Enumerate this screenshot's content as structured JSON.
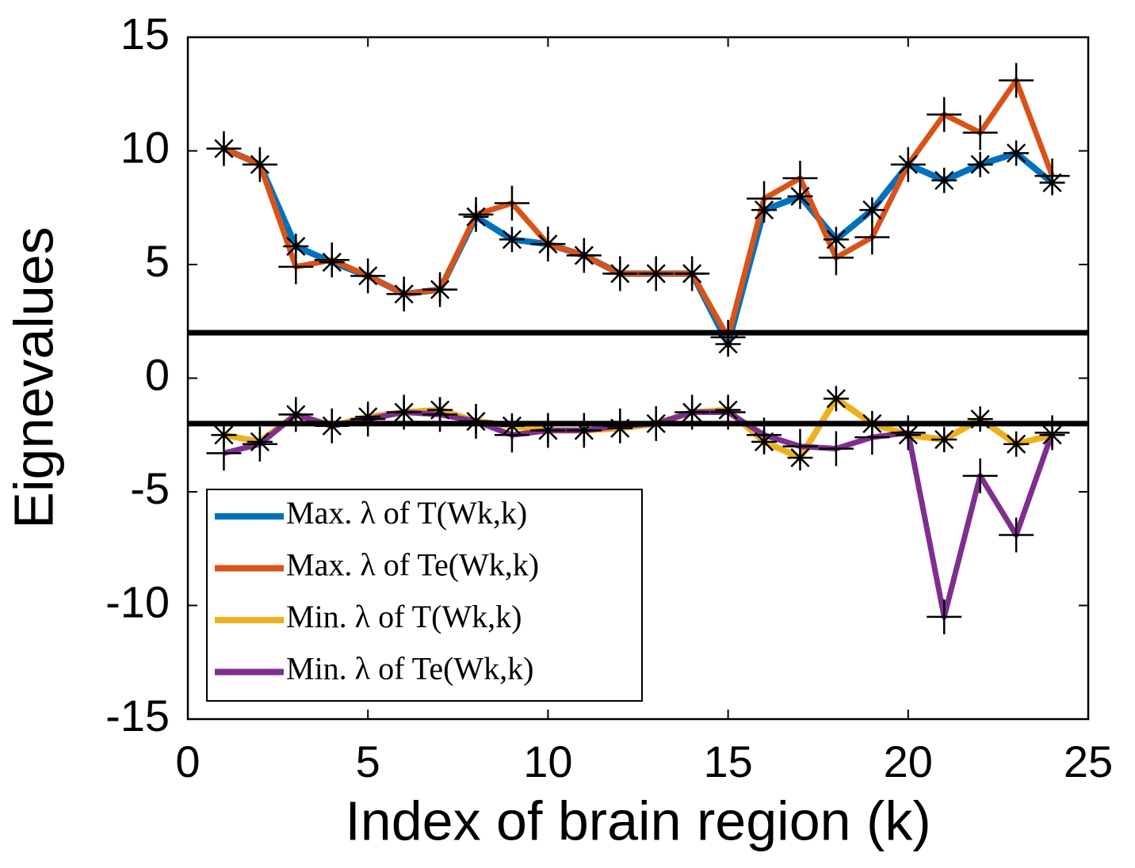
{
  "chart_data": {
    "type": "line",
    "x_label": "Index of brain region (k)",
    "y_label": "Eignevalues",
    "x": [
      1,
      2,
      3,
      4,
      5,
      6,
      7,
      8,
      9,
      10,
      11,
      12,
      13,
      14,
      15,
      16,
      17,
      18,
      19,
      20,
      21,
      22,
      23,
      24
    ],
    "series": [
      {
        "name": "Max. λ of T(Wk,k)",
        "color": "#0072bd",
        "marker": "star",
        "values": [
          10.1,
          9.4,
          5.8,
          5.1,
          4.5,
          3.7,
          3.9,
          7.1,
          6.1,
          5.9,
          5.4,
          4.6,
          4.6,
          4.6,
          1.5,
          7.4,
          8.0,
          6.1,
          7.4,
          9.4,
          8.7,
          9.4,
          9.9,
          8.6
        ]
      },
      {
        "name": "Max. λ of Te(Wk,k)",
        "color": "#d95319",
        "marker": "plus",
        "values": [
          10.1,
          9.4,
          4.9,
          5.2,
          4.5,
          3.7,
          3.9,
          7.2,
          7.7,
          5.9,
          5.4,
          4.6,
          4.6,
          4.6,
          1.8,
          7.9,
          8.8,
          5.3,
          6.2,
          9.4,
          11.6,
          10.8,
          13.1,
          8.9
        ]
      },
      {
        "name": "Min. λ of T(Wk,k)",
        "color": "#edb120",
        "marker": "star",
        "values": [
          -2.5,
          -2.8,
          -1.6,
          -2.1,
          -1.7,
          -1.5,
          -1.4,
          -1.9,
          -2.1,
          -2.3,
          -2.3,
          -2.2,
          -2.0,
          -1.5,
          -1.4,
          -2.8,
          -3.5,
          -0.9,
          -2.0,
          -2.5,
          -2.7,
          -1.8,
          -2.9,
          -2.5
        ]
      },
      {
        "name": "Min. λ of Te(Wk,k)",
        "color": "#7e2f8e",
        "marker": "plus",
        "values": [
          -3.3,
          -2.9,
          -1.6,
          -2.1,
          -1.8,
          -1.5,
          -1.6,
          -1.9,
          -2.5,
          -2.3,
          -2.3,
          -2.1,
          -2.0,
          -1.5,
          -1.5,
          -2.5,
          -3.0,
          -3.1,
          -2.6,
          -2.4,
          -10.5,
          -4.3,
          -6.9,
          -2.4
        ]
      }
    ],
    "reference_lines": [
      2,
      -2
    ],
    "xlim": [
      0,
      25
    ],
    "xticks": [
      0,
      5,
      10,
      15,
      20,
      25
    ],
    "ylim": [
      -15,
      15
    ],
    "yticks": [
      -15,
      -10,
      -5,
      0,
      5,
      10,
      15
    ],
    "legend": "lower-left"
  }
}
